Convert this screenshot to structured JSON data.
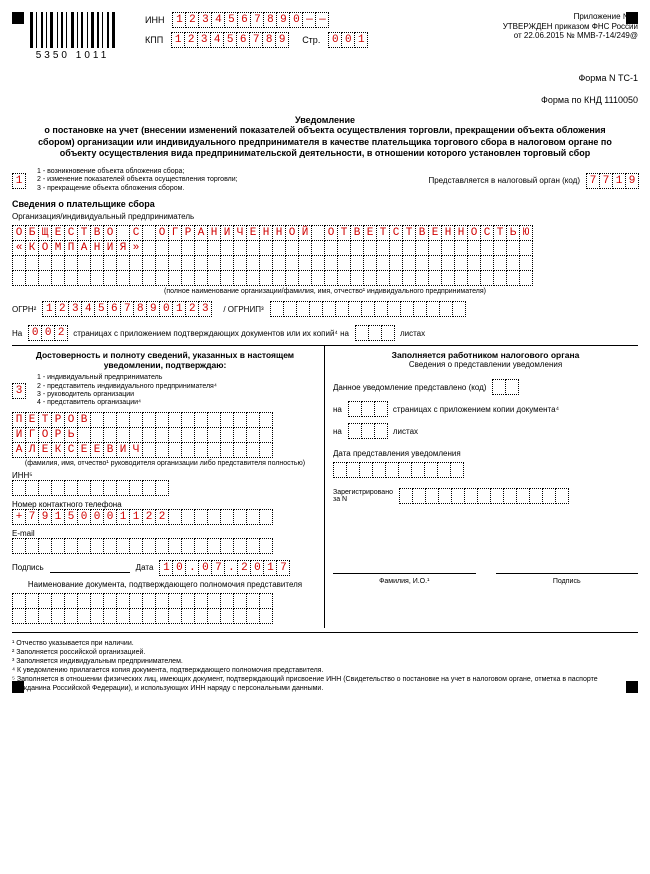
{
  "barcode_number": "5350 1011",
  "inn_label": "ИНН",
  "inn": [
    "1",
    "2",
    "3",
    "4",
    "5",
    "6",
    "7",
    "8",
    "9",
    "0",
    "—",
    "—"
  ],
  "kpp_label": "КПП",
  "kpp": [
    "1",
    "2",
    "3",
    "4",
    "5",
    "6",
    "7",
    "8",
    "9"
  ],
  "page_label": "Стр.",
  "page_num": [
    "0",
    "0",
    "1"
  ],
  "decree_l1": "Приложение № 1",
  "decree_l2": "УТВЕРЖДЕН приказом ФНС России",
  "decree_l3": "от 22.06.2015 № ММВ-7-14/249@",
  "forma_l1": "Форма N ТС-1",
  "forma_l2": "Форма по КНД 1110050",
  "notif_title": "Уведомление",
  "notif_body": "о постановке на учет (внесении изменений показателей объекта осуществления торговли, прекращении объекта обложения сбором) организации или индивидуального предпринимателя в качестве плательщика торгового сбора в налоговом органе по объекту осуществления вида предпринимательской деятельности, в отношении которого установлен торговый сбор",
  "reason_code": [
    "1"
  ],
  "reason_legend_1": "1 - возникновение объекта обложения сбора;",
  "reason_legend_2": "2 - изменение показателей объекта осуществления торговли;",
  "reason_legend_3": "3 - прекращение объекта обложения сбором.",
  "tax_auth_label": "Представляется в налоговый орган (код)",
  "tax_auth_code": [
    "7",
    "7",
    "1",
    "9"
  ],
  "payer_section": "Сведения о плательщике сбора",
  "org_label": "Организация/индивидуальный предприниматель",
  "org_line1": "ОБЩЕСТВО С ОГРАНИЧЕННОЙ ОТВЕТСТВЕННОСТЬЮ",
  "org_line2": "«КОМПАНИЯ»",
  "org_caption": "(полное наименование организации/фамилия, имя, отчество¹ индивидуального предпринимателя)",
  "ogrn_label": "ОГРН²",
  "ogrn": [
    "1",
    "2",
    "3",
    "4",
    "5",
    "6",
    "7",
    "8",
    "9",
    "0",
    "1",
    "2",
    "3"
  ],
  "ogrnip_label": "/ ОГРНИП³",
  "ogrnip_len": 15,
  "na_label": "На",
  "pages": [
    "0",
    "0",
    "2"
  ],
  "copies_text": "страницах с приложением подтверждающих документов или их копий⁴ на",
  "copies_len": 3,
  "sheets_label": "листах",
  "conf_title": "Достоверность и полноту сведений, указанных в настоящем уведомлении, подтверждаю:",
  "repr_code": [
    "3"
  ],
  "repr_legend_1": "1 - индивидуальный предприниматель",
  "repr_legend_2": "2 - представитель индивидуального предпринимателя⁴",
  "repr_legend_3": "3 - руководитель организации",
  "repr_legend_4": "4 - представитель организации⁴",
  "surname": "ПЕТРОВ",
  "firstname": "ИГОРЬ",
  "patronymic": "АЛЕКСЕЕВИЧ",
  "fio_caption": "(фамилия, имя, отчество¹ руководителя организации либо представителя полностью)",
  "inn5_label": "ИНН⁵",
  "inn5_len": 12,
  "phone_label": "Номер контактного телефона",
  "phone": [
    "+",
    "7",
    "9",
    "1",
    "5",
    "0",
    "0",
    "0",
    "1",
    "1",
    "2",
    "2"
  ],
  "email_label": "E-mail",
  "email_len": 20,
  "sign_label": "Подпись",
  "date_label": "Дата",
  "date": [
    "1",
    "0",
    ".",
    "0",
    "7",
    ".",
    "2",
    "0",
    "1",
    "7"
  ],
  "doc_caption": "Наименование документа, подтверждающего полномочия представителя",
  "right_title": "Заполняется работником налогового органа",
  "right_sub": "Сведения о представлении уведомления",
  "right_l1": "Данное уведомление представлено (код)",
  "right_l2a": "на",
  "right_l2b": "страницах с приложением копии документа⁴",
  "right_l3": "листах",
  "right_date_label": "Дата представления уведомления",
  "right_reg_l1": "Зарегистрировано",
  "right_reg_l2": "за N",
  "right_fio": "Фамилия, И.О.¹",
  "right_sign": "Подпись",
  "fn1": "¹ Отчество указывается при наличии.",
  "fn2": "² Заполняется российской организацией.",
  "fn3": "³ Заполняется индивидуальным предпринимателем.",
  "fn4": "⁴ К уведомлению прилагается копия документа, подтверждающего полномочия представителя.",
  "fn5": "⁵ Заполняется в отношении физических лиц, имеющих документ, подтверждающий присвоение ИНН (Свидетельство о постановке на учет в налоговом органе, отметка в паспорте гражданина Российской Федерации), и использующих ИНН наряду с персональными данными."
}
